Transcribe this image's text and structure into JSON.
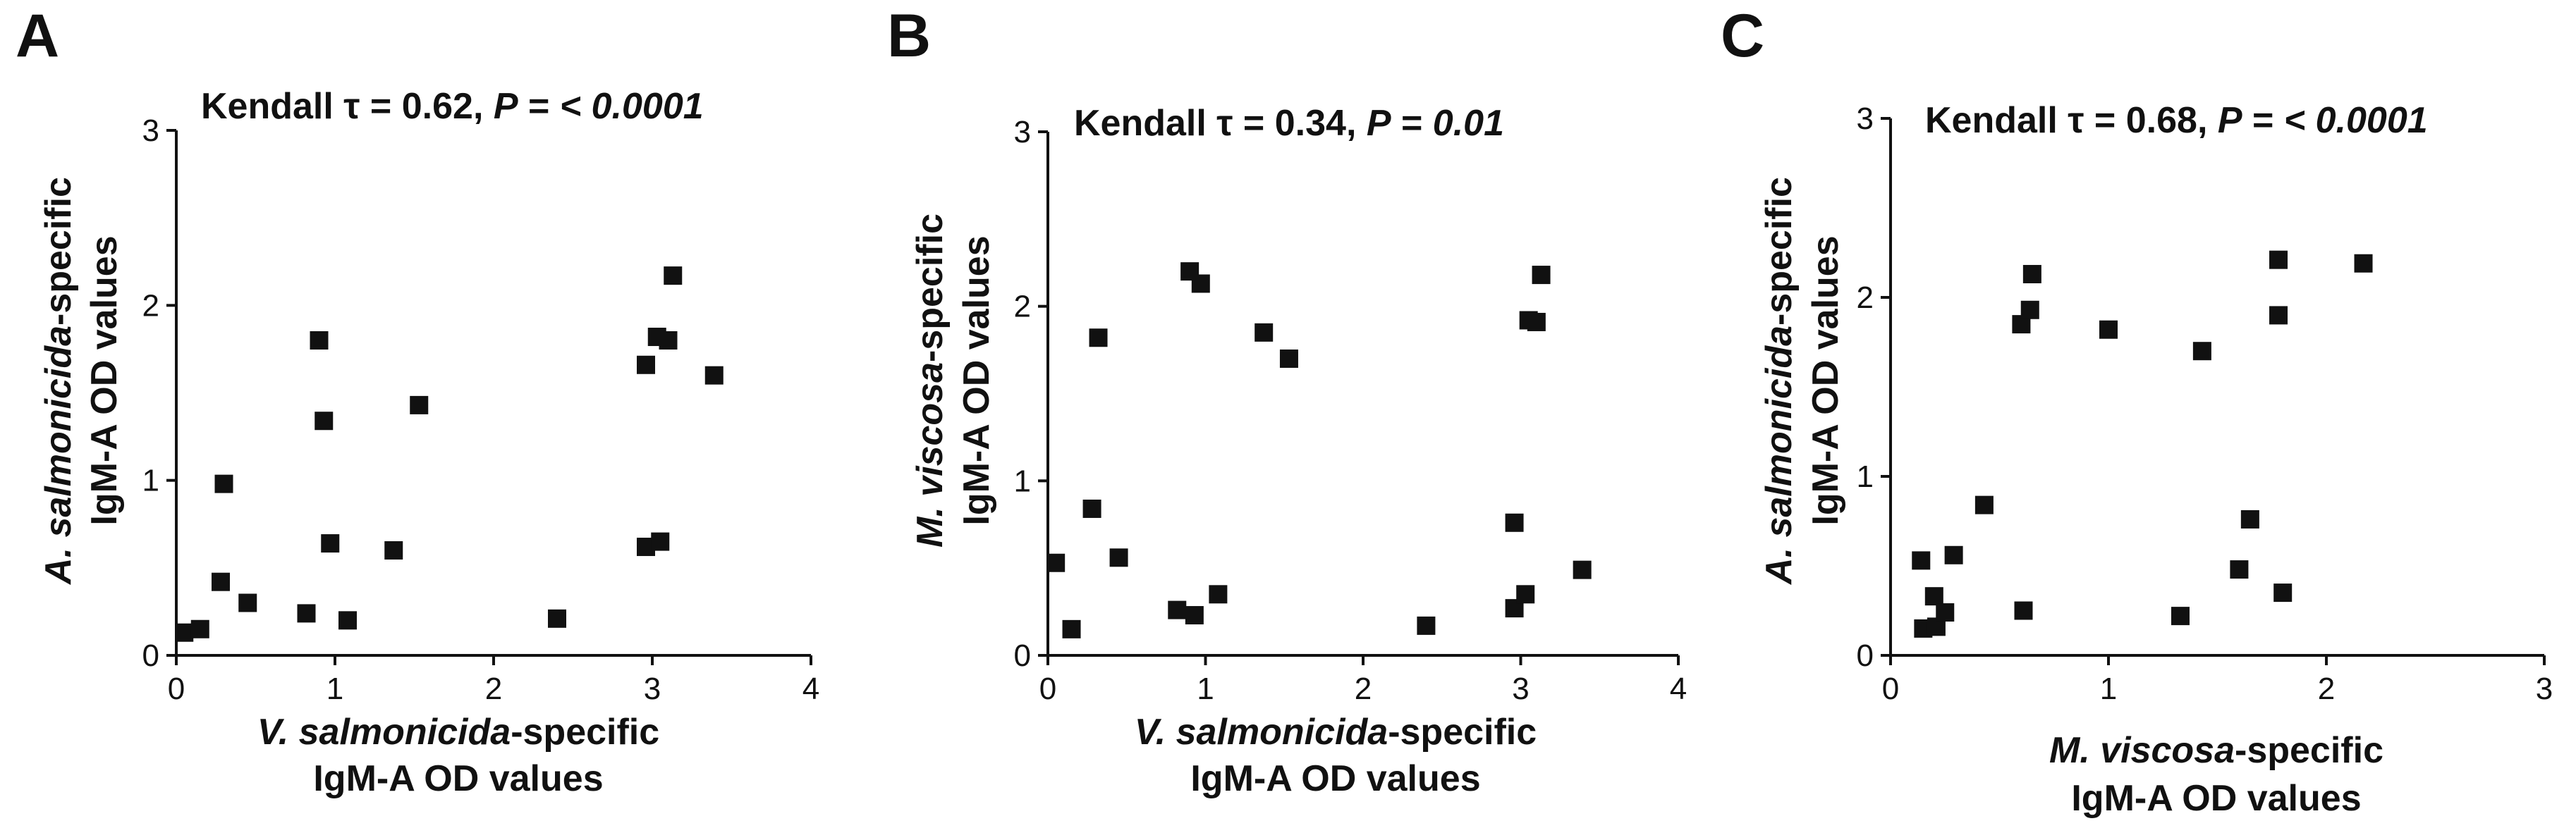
{
  "chart_data": [
    {
      "type": "scatter",
      "panel_label": "A",
      "stat_prefix": "Kendall τ = 0.62, ",
      "stat_p_label": "P",
      "stat_eq": " = ",
      "stat_p_value": "< 0.0001",
      "xlabel_italic": "V. salmonicida",
      "xlabel_suffix": "-specific",
      "xlabel_line2": "IgM-A OD values",
      "ylabel_italic": "A. salmonicida",
      "ylabel_suffix": "-specific",
      "ylabel_line2": "IgM-A OD values",
      "xlim": [
        0,
        4
      ],
      "ylim": [
        0,
        3
      ],
      "xticks": [
        "0",
        "1",
        "2",
        "3",
        "4"
      ],
      "yticks": [
        "0",
        "1",
        "2",
        "3"
      ],
      "points": [
        [
          0.05,
          0.13
        ],
        [
          0.15,
          0.15
        ],
        [
          0.28,
          0.42
        ],
        [
          0.3,
          0.98
        ],
        [
          0.45,
          0.3
        ],
        [
          0.82,
          0.24
        ],
        [
          0.9,
          1.8
        ],
        [
          0.93,
          1.34
        ],
        [
          0.97,
          0.64
        ],
        [
          1.08,
          0.2
        ],
        [
          1.37,
          0.6
        ],
        [
          1.53,
          1.43
        ],
        [
          2.4,
          0.21
        ],
        [
          2.96,
          1.66
        ],
        [
          2.96,
          0.62
        ],
        [
          3.03,
          1.82
        ],
        [
          3.05,
          0.65
        ],
        [
          3.1,
          1.8
        ],
        [
          3.13,
          2.17
        ],
        [
          3.39,
          1.6
        ]
      ]
    },
    {
      "type": "scatter",
      "panel_label": "B",
      "stat_prefix": "Kendall τ = 0.34, ",
      "stat_p_label": "P",
      "stat_eq": " = ",
      "stat_p_value": "0.01",
      "xlabel_italic": "V. salmonicida",
      "xlabel_suffix": "-specific",
      "xlabel_line2": "IgM-A OD values",
      "ylabel_italic": "M. viscosa",
      "ylabel_suffix": "-specific",
      "ylabel_line2": "IgM-A OD values",
      "xlim": [
        0,
        4
      ],
      "ylim": [
        0,
        3
      ],
      "xticks": [
        "0",
        "1",
        "2",
        "3",
        "4"
      ],
      "yticks": [
        "0",
        "1",
        "2",
        "3"
      ],
      "points": [
        [
          0.05,
          0.53
        ],
        [
          0.15,
          0.15
        ],
        [
          0.28,
          0.84
        ],
        [
          0.32,
          1.82
        ],
        [
          0.45,
          0.56
        ],
        [
          0.82,
          0.26
        ],
        [
          0.9,
          2.2
        ],
        [
          0.93,
          0.23
        ],
        [
          0.97,
          2.13
        ],
        [
          1.08,
          0.35
        ],
        [
          1.37,
          1.85
        ],
        [
          1.53,
          1.7
        ],
        [
          2.4,
          0.17
        ],
        [
          2.96,
          0.76
        ],
        [
          2.96,
          0.27
        ],
        [
          3.03,
          0.35
        ],
        [
          3.05,
          1.92
        ],
        [
          3.1,
          1.91
        ],
        [
          3.13,
          2.18
        ],
        [
          3.39,
          0.49
        ]
      ]
    },
    {
      "type": "scatter",
      "panel_label": "C",
      "stat_prefix": "Kendall τ = 0.68, ",
      "stat_p_label": "P",
      "stat_eq": " = ",
      "stat_p_value": "< 0.0001",
      "xlabel_italic": "M. viscosa",
      "xlabel_suffix": "-specific",
      "xlabel_line2": "IgM-A OD values",
      "ylabel_italic": "A. salmonicida",
      "ylabel_suffix": "-specific",
      "ylabel_line2": "IgM-A OD values",
      "xlim": [
        0,
        3
      ],
      "ylim": [
        0,
        3
      ],
      "xticks": [
        "0",
        "1",
        "2",
        "3"
      ],
      "yticks": [
        "0",
        "1",
        "2",
        "3"
      ],
      "points": [
        [
          0.15,
          0.15
        ],
        [
          0.14,
          0.53
        ],
        [
          0.2,
          0.33
        ],
        [
          0.21,
          0.16
        ],
        [
          0.25,
          0.24
        ],
        [
          0.29,
          0.56
        ],
        [
          0.43,
          0.84
        ],
        [
          0.6,
          1.85
        ],
        [
          0.61,
          0.25
        ],
        [
          0.64,
          1.93
        ],
        [
          0.65,
          2.13
        ],
        [
          1.0,
          1.82
        ],
        [
          1.33,
          0.22
        ],
        [
          1.43,
          1.7
        ],
        [
          1.6,
          0.48
        ],
        [
          1.65,
          0.76
        ],
        [
          1.78,
          2.21
        ],
        [
          1.78,
          1.9
        ],
        [
          1.8,
          0.35
        ],
        [
          2.17,
          2.19
        ]
      ]
    }
  ]
}
